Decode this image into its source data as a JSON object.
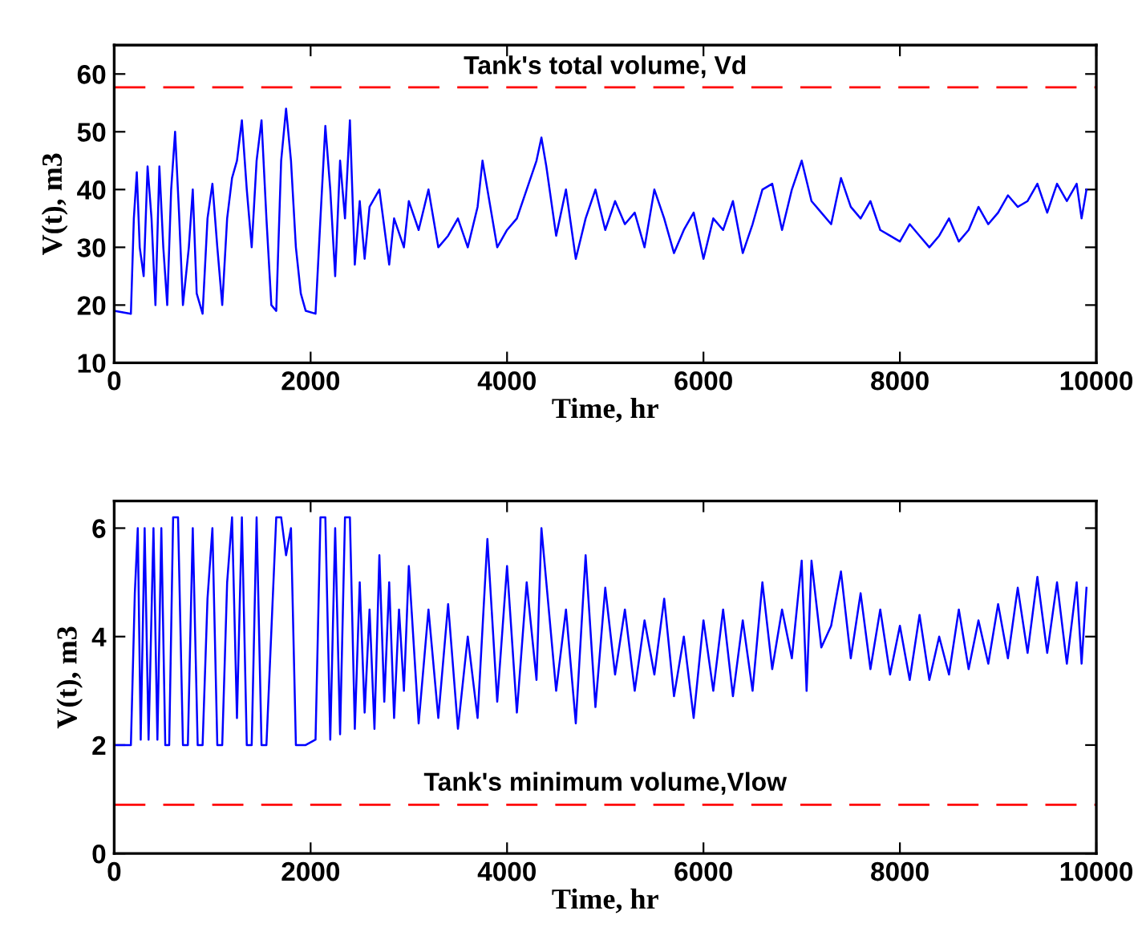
{
  "chart_data": [
    {
      "type": "line",
      "xlabel": "Time, hr",
      "ylabel": "V(t), m3",
      "xlim": [
        0,
        10000
      ],
      "ylim": [
        10,
        65
      ],
      "xticks": [
        0,
        2000,
        4000,
        6000,
        8000,
        10000
      ],
      "yticks": [
        10,
        20,
        30,
        40,
        50,
        60
      ],
      "grid": false,
      "legend": false,
      "x": [
        0,
        170,
        200,
        230,
        260,
        300,
        340,
        380,
        420,
        460,
        500,
        540,
        580,
        620,
        660,
        700,
        760,
        800,
        840,
        900,
        950,
        1000,
        1050,
        1100,
        1150,
        1200,
        1250,
        1300,
        1350,
        1400,
        1450,
        1500,
        1550,
        1600,
        1650,
        1700,
        1750,
        1800,
        1850,
        1900,
        1950,
        2050,
        2100,
        2150,
        2200,
        2250,
        2300,
        2350,
        2400,
        2450,
        2500,
        2550,
        2600,
        2700,
        2800,
        2850,
        2950,
        3000,
        3100,
        3200,
        3300,
        3400,
        3500,
        3600,
        3700,
        3750,
        3800,
        3900,
        4000,
        4100,
        4200,
        4300,
        4350,
        4400,
        4500,
        4600,
        4700,
        4800,
        4900,
        5000,
        5100,
        5200,
        5300,
        5400,
        5500,
        5600,
        5700,
        5800,
        5900,
        6000,
        6100,
        6200,
        6300,
        6400,
        6500,
        6600,
        6700,
        6800,
        6900,
        7000,
        7100,
        7200,
        7300,
        7400,
        7500,
        7600,
        7700,
        7800,
        7900,
        8000,
        8100,
        8200,
        8300,
        8400,
        8500,
        8600,
        8700,
        8800,
        8900,
        9000,
        9100,
        9200,
        9300,
        9400,
        9500,
        9600,
        9700,
        9800,
        9850,
        9900
      ],
      "series": [
        {
          "color": "#0000ff",
          "values": [
            19,
            18.5,
            35,
            43,
            30,
            25,
            44,
            35,
            20,
            44,
            30,
            20,
            40,
            50,
            36,
            20,
            30,
            40,
            22,
            18.5,
            35,
            41,
            30,
            20,
            35,
            42,
            45,
            52,
            40,
            30,
            45,
            52,
            35,
            20,
            19,
            45,
            54,
            45,
            30,
            22,
            19,
            18.5,
            35,
            51,
            40,
            25,
            45,
            35,
            52,
            27,
            38,
            28,
            37,
            40,
            27,
            35,
            30,
            38,
            33,
            40,
            30,
            32,
            35,
            30,
            37,
            45,
            40,
            30,
            33,
            35,
            40,
            45,
            49,
            44,
            32,
            40,
            28,
            35,
            40,
            33,
            38,
            34,
            36,
            30,
            40,
            35,
            29,
            33,
            36,
            28,
            35,
            33,
            38,
            29,
            34,
            40,
            41,
            33,
            40,
            45,
            38,
            36,
            34,
            42,
            37,
            35,
            38,
            33,
            32,
            31,
            34,
            32,
            30,
            32,
            35,
            31,
            33,
            37,
            34,
            36,
            39,
            37,
            38,
            41,
            36,
            41,
            38,
            41,
            35,
            40
          ]
        }
      ],
      "ref_lines": [
        {
          "axis": "y",
          "value": 57.7,
          "label": "Tank's total volume, Vd",
          "color": "#ff0000",
          "line_style": "dashed"
        }
      ]
    },
    {
      "type": "line",
      "xlabel": "Time, hr",
      "ylabel": "V(t), m3",
      "xlim": [
        0,
        10000
      ],
      "ylim": [
        0,
        6.5
      ],
      "xticks": [
        0,
        2000,
        4000,
        6000,
        8000,
        10000
      ],
      "yticks": [
        0,
        2,
        4,
        6
      ],
      "grid": false,
      "legend": false,
      "x": [
        0,
        170,
        210,
        240,
        270,
        310,
        350,
        400,
        440,
        480,
        520,
        560,
        600,
        650,
        700,
        750,
        800,
        850,
        900,
        950,
        1000,
        1050,
        1100,
        1150,
        1200,
        1250,
        1300,
        1350,
        1400,
        1450,
        1500,
        1550,
        1650,
        1700,
        1750,
        1800,
        1850,
        1950,
        2050,
        2100,
        2150,
        2200,
        2250,
        2300,
        2350,
        2400,
        2450,
        2500,
        2550,
        2600,
        2650,
        2700,
        2750,
        2800,
        2850,
        2900,
        2950,
        3000,
        3100,
        3200,
        3300,
        3400,
        3500,
        3600,
        3700,
        3800,
        3900,
        4000,
        4100,
        4200,
        4300,
        4350,
        4400,
        4500,
        4600,
        4700,
        4800,
        4900,
        5000,
        5100,
        5200,
        5300,
        5400,
        5500,
        5600,
        5700,
        5800,
        5900,
        6000,
        6100,
        6200,
        6300,
        6400,
        6500,
        6600,
        6700,
        6800,
        6900,
        7000,
        7050,
        7100,
        7200,
        7300,
        7400,
        7500,
        7600,
        7700,
        7800,
        7900,
        8000,
        8100,
        8200,
        8300,
        8400,
        8500,
        8600,
        8700,
        8800,
        8900,
        9000,
        9100,
        9200,
        9300,
        9400,
        9500,
        9600,
        9700,
        9800,
        9850,
        9900
      ],
      "series": [
        {
          "color": "#0000ff",
          "values": [
            2,
            2,
            4.8,
            6,
            2.1,
            6,
            2.1,
            6,
            2.1,
            6,
            2,
            2,
            6.2,
            6.2,
            2,
            2,
            6,
            2,
            2,
            4.7,
            6,
            2,
            2,
            5,
            6.2,
            2.5,
            6.2,
            2,
            2,
            6.2,
            2,
            2,
            6.2,
            6.2,
            5.5,
            6,
            2,
            2,
            2.1,
            6.2,
            6.2,
            2.1,
            6,
            2.2,
            6.2,
            6.2,
            2.3,
            5,
            2.6,
            4.5,
            2.3,
            5.5,
            2.8,
            5,
            2.5,
            4.5,
            3,
            5.3,
            2.4,
            4.5,
            2.5,
            4.6,
            2.3,
            4,
            2.5,
            5.8,
            2.8,
            5.3,
            2.6,
            5,
            3.2,
            6,
            5,
            3,
            4.5,
            2.4,
            5.5,
            2.7,
            4.9,
            3.3,
            4.5,
            3,
            4.3,
            3.3,
            4.7,
            2.9,
            4,
            2.5,
            4.3,
            3,
            4.5,
            2.9,
            4.3,
            3,
            5,
            3.4,
            4.5,
            3.6,
            5.4,
            3,
            5.4,
            3.8,
            4.2,
            5.2,
            3.6,
            4.8,
            3.4,
            4.5,
            3.3,
            4.2,
            3.2,
            4.4,
            3.2,
            4,
            3.3,
            4.5,
            3.4,
            4.3,
            3.5,
            4.6,
            3.6,
            4.9,
            3.7,
            5.1,
            3.7,
            5,
            3.5,
            5,
            3.5,
            4.9
          ]
        }
      ],
      "ref_lines": [
        {
          "axis": "y",
          "value": 0.9,
          "label": "Tank's minimum volume,Vlow",
          "color": "#ff0000",
          "line_style": "dashed"
        }
      ]
    }
  ]
}
